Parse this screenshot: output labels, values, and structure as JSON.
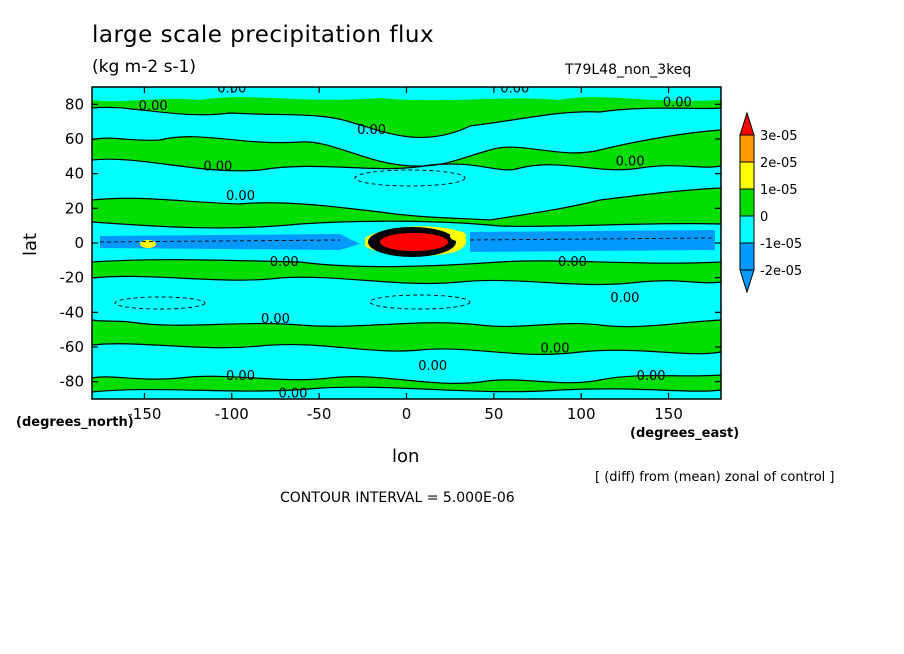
{
  "figure": {
    "title": "large scale precipitation flux",
    "units": "(kg m-2 s-1)",
    "run_label": "T79L48_non_3keq",
    "note": "[ (diff) from (mean) zonal of control ]",
    "contour_interval": "CONTOUR INTERVAL = 5.000E-06",
    "x_units": "(degrees_east)",
    "y_units": "(degrees_north)"
  },
  "chart_data": {
    "type": "heatmap",
    "xlabel": "lon",
    "ylabel": "lat",
    "xlim": [
      -180,
      180
    ],
    "ylim": [
      -90,
      90
    ],
    "x_ticks": [
      -150,
      -100,
      -50,
      0,
      50,
      100,
      150
    ],
    "y_ticks": [
      80,
      60,
      40,
      20,
      0,
      -20,
      -40,
      -60,
      -80
    ],
    "colorbar": {
      "labels": [
        "3e-05",
        "2e-05",
        "1e-05",
        "0",
        "-1e-05",
        "-2e-05"
      ],
      "colors": [
        "#ff0000",
        "#ff9900",
        "#ffff00",
        "#00dd00",
        "#00ffff",
        "#0099ff"
      ]
    },
    "contour_labels": [
      {
        "text": "0.00",
        "lon": -145,
        "lat": 78
      },
      {
        "text": "0.00",
        "lon": -100,
        "lat": 88
      },
      {
        "text": "0.00",
        "lon": 62,
        "lat": 88
      },
      {
        "text": "0.00",
        "lon": 155,
        "lat": 80
      },
      {
        "text": "0.00",
        "lon": -20,
        "lat": 64
      },
      {
        "text": "0.00",
        "lon": -108,
        "lat": 43
      },
      {
        "text": "0.00",
        "lon": 128,
        "lat": 46
      },
      {
        "text": "0.00",
        "lon": -95,
        "lat": 26
      },
      {
        "text": "0.00",
        "lon": -70,
        "lat": -12
      },
      {
        "text": "0.00",
        "lon": 95,
        "lat": -12
      },
      {
        "text": "0.00",
        "lon": 125,
        "lat": -33
      },
      {
        "text": "0.00",
        "lon": -75,
        "lat": -45
      },
      {
        "text": "0.00",
        "lon": 85,
        "lat": -62
      },
      {
        "text": "0.00",
        "lon": -95,
        "lat": -78
      },
      {
        "text": "0.00",
        "lon": 15,
        "lat": -72
      },
      {
        "text": "0.00",
        "lon": 140,
        "lat": -78
      },
      {
        "text": "0.00",
        "lon": -65,
        "lat": -88
      }
    ]
  }
}
